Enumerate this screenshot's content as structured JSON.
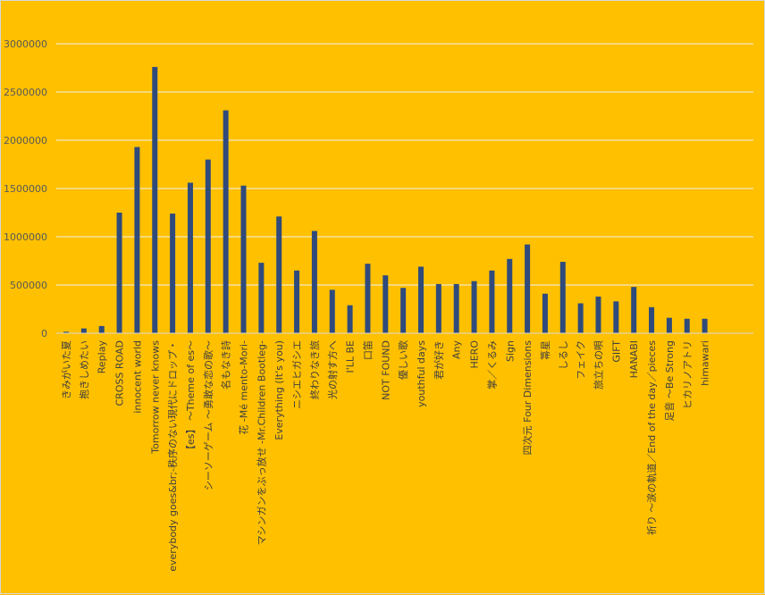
{
  "chart_data": {
    "type": "bar",
    "title": "",
    "xlabel": "",
    "ylabel": "",
    "ylim": [
      0,
      3000000
    ],
    "y_ticks": [
      0,
      500000,
      1000000,
      1500000,
      2000000,
      2500000,
      3000000
    ],
    "grid": true,
    "legend": "none",
    "colors": {
      "bar": "#2f4b7c",
      "background": "#ffc000",
      "grid": "#f2f2f2",
      "axis": "#d9d9d9"
    },
    "categories": [
      "きみがいた夏",
      "抱きしめたい",
      "Replay",
      "CROSS ROAD",
      "innocent world",
      "Tomorrow never knows",
      "everybody goes&br;-秩序のない現代にドロップ・",
      "【es】 ～Theme of es～",
      "シーソーゲーム ～勇敢な恋の歌～",
      "名もなき詩",
      "花 -Mé mento-Mori-",
      "マシンガンをぶっ放せ -Mr.Children Bootleg-",
      "Everything (It's you)",
      "ニシエヒガシエ",
      "終わりなき旅",
      "光の射す方へ",
      "I'LL BE",
      "口笛",
      "NOT FOUND",
      "優しい歌",
      "youthful days",
      "君が好き",
      "Any",
      "HERO",
      "掌／くるみ",
      "Sign",
      "四次元 Four Dimensions",
      "箒星",
      "しるし",
      "フェイク",
      "旅立ちの唄",
      "GIFT",
      "HANABI",
      "祈り ～涙の軌道／End of the day／pieces",
      "足音 ～Be Strong",
      "ヒカリノアトリ",
      "himawari"
    ],
    "values": [
      15000,
      50000,
      75000,
      1250000,
      1930000,
      2760000,
      1240000,
      1560000,
      1800000,
      2310000,
      1530000,
      730000,
      1210000,
      650000,
      1060000,
      450000,
      290000,
      720000,
      600000,
      470000,
      690000,
      510000,
      510000,
      540000,
      650000,
      770000,
      920000,
      410000,
      740000,
      310000,
      380000,
      330000,
      480000,
      270000,
      160000,
      150000,
      150000
    ]
  }
}
